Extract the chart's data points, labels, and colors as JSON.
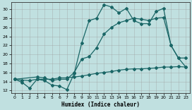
{
  "xlabel": "Humidex (Indice chaleur)",
  "bg_color": "#c0e0e0",
  "line_color": "#1a6666",
  "xlim": [
    -0.5,
    23.5
  ],
  "ylim": [
    11.5,
    31.5
  ],
  "yticks": [
    12,
    14,
    16,
    18,
    20,
    22,
    24,
    26,
    28,
    30
  ],
  "xticks": [
    0,
    1,
    2,
    3,
    4,
    5,
    6,
    7,
    8,
    9,
    10,
    11,
    12,
    13,
    14,
    15,
    16,
    17,
    18,
    19,
    20,
    21,
    22,
    23
  ],
  "line1_x": [
    0,
    1,
    2,
    3,
    4,
    5,
    6,
    7,
    8,
    9,
    10,
    11,
    12,
    13,
    14,
    15,
    16,
    17,
    18,
    19,
    20,
    21,
    22,
    23
  ],
  "line1_y": [
    14.5,
    13.8,
    12.5,
    14.5,
    14.2,
    13.2,
    13.0,
    12.2,
    15.8,
    22.5,
    27.5,
    28.0,
    31.0,
    30.5,
    29.2,
    30.2,
    27.5,
    26.8,
    26.8,
    29.5,
    30.2,
    22.0,
    19.2,
    17.2
  ],
  "line2_x": [
    0,
    3,
    4,
    5,
    6,
    7,
    8,
    9,
    10,
    11,
    12,
    13,
    14,
    15,
    16,
    17,
    18,
    19,
    20,
    21,
    22,
    23
  ],
  "line2_y": [
    14.5,
    15.0,
    14.8,
    14.2,
    14.5,
    14.5,
    16.0,
    19.0,
    19.5,
    21.5,
    24.5,
    26.0,
    27.0,
    27.5,
    28.0,
    27.8,
    27.5,
    28.0,
    28.2,
    22.0,
    19.2,
    19.2
  ],
  "line3_x": [
    0,
    1,
    2,
    3,
    4,
    5,
    6,
    7,
    8,
    9,
    10,
    11,
    12,
    13,
    14,
    15,
    16,
    17,
    18,
    19,
    20,
    21,
    22,
    23
  ],
  "line3_y": [
    14.5,
    14.3,
    14.2,
    14.5,
    14.5,
    14.5,
    14.8,
    14.8,
    15.0,
    15.2,
    15.5,
    15.8,
    16.0,
    16.2,
    16.5,
    16.7,
    16.8,
    16.8,
    16.9,
    17.0,
    17.2,
    17.2,
    17.3,
    17.2
  ],
  "grid_color": "#999999"
}
